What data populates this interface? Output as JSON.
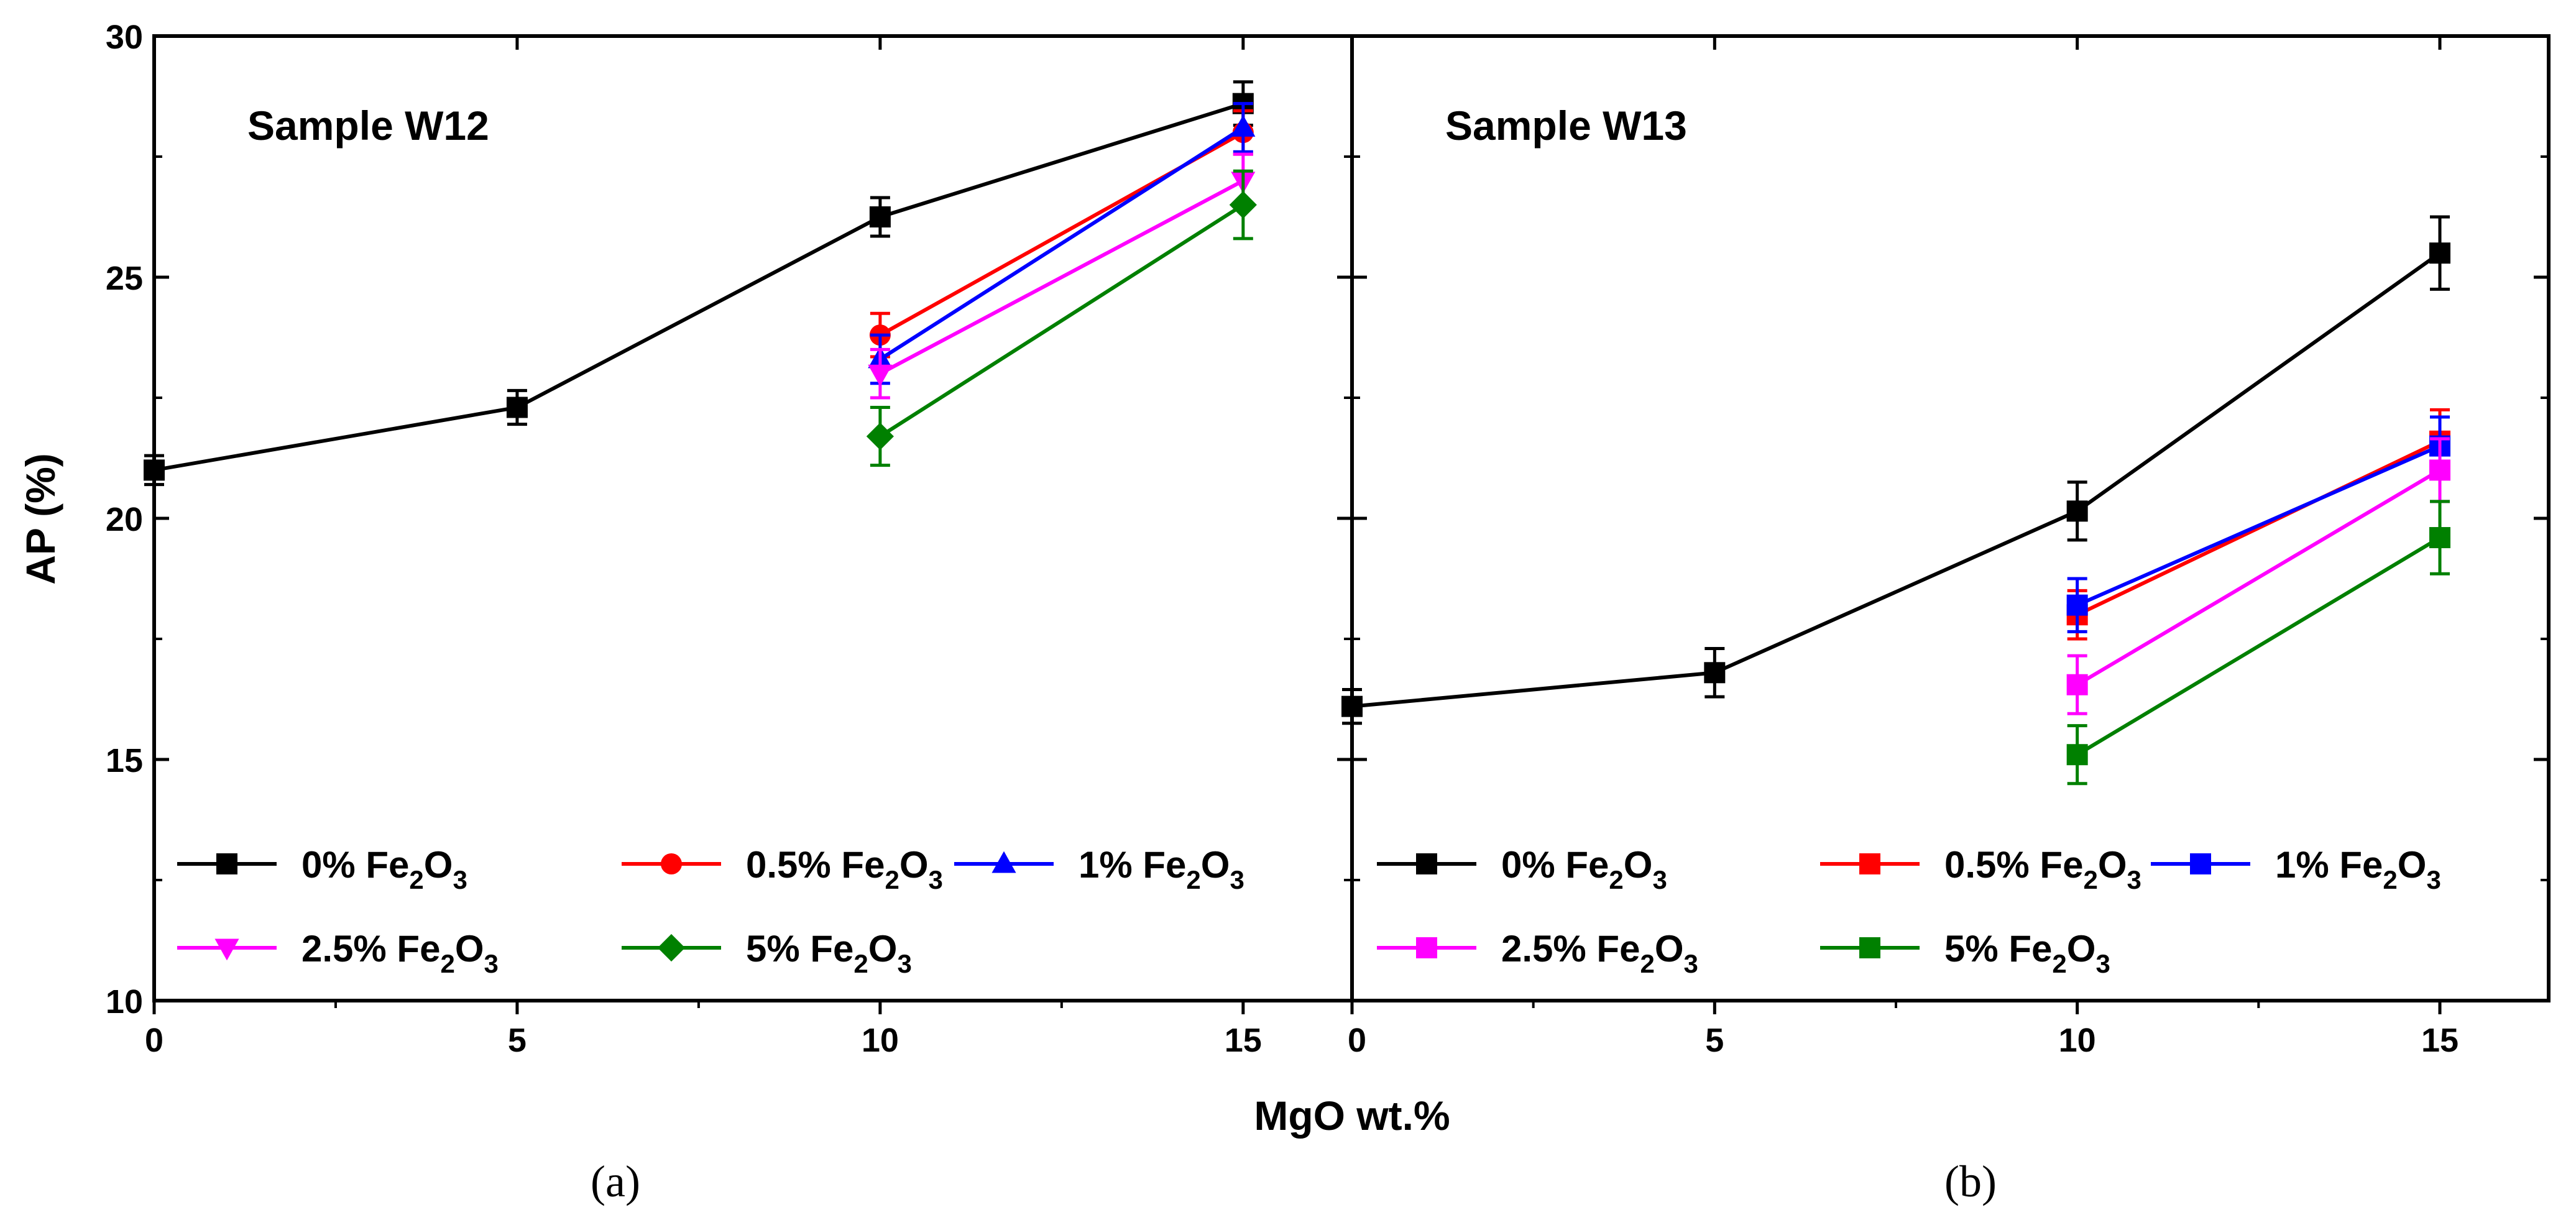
{
  "chart_data": [
    {
      "type": "line",
      "panel_label": "(a)",
      "title": "Sample W12",
      "xlabel": "MgO wt.%",
      "ylabel": "AP (%)",
      "xlim": [
        0,
        16.5
      ],
      "ylim": [
        10,
        30
      ],
      "xticks": [
        0,
        5,
        10,
        15
      ],
      "yticks": [
        10,
        15,
        20,
        25,
        30
      ],
      "legend_position": "bottom-left",
      "legend_columns": 3,
      "series": [
        {
          "name": "0% Fe2O3",
          "name_base": "0% Fe",
          "name_sub1": "2",
          "name_mid": "O",
          "name_sub2": "3",
          "color": "#000000",
          "marker": "square",
          "x": [
            0,
            5,
            10,
            15
          ],
          "y": [
            21.0,
            22.3,
            26.25,
            28.6
          ],
          "err": [
            0.3,
            0.35,
            0.4,
            0.45
          ]
        },
        {
          "name": "0.5% Fe2O3",
          "name_base": "0.5% Fe",
          "name_sub1": "2",
          "name_mid": "O",
          "name_sub2": "3",
          "color": "#ff0000",
          "marker": "circle",
          "x": [
            10,
            15
          ],
          "y": [
            23.8,
            28.0
          ],
          "err": [
            0.45,
            0.45
          ]
        },
        {
          "name": "1% Fe2O3",
          "name_base": "1% Fe",
          "name_sub1": "2",
          "name_mid": "O",
          "name_sub2": "3",
          "color": "#0000ff",
          "marker": "triangle-up",
          "x": [
            10,
            15
          ],
          "y": [
            23.3,
            28.1
          ],
          "err": [
            0.5,
            0.5
          ]
        },
        {
          "name": "2.5% Fe2O3",
          "name_base": "2.5% Fe",
          "name_sub1": "2",
          "name_mid": "O",
          "name_sub2": "3",
          "color": "#ff00ff",
          "marker": "triangle-down",
          "x": [
            10,
            15
          ],
          "y": [
            23.0,
            27.0
          ],
          "err": [
            0.5,
            0.55
          ]
        },
        {
          "name": "5% Fe2O3",
          "name_base": "5% Fe",
          "name_sub1": "2",
          "name_mid": "O",
          "name_sub2": "3",
          "color": "#008000",
          "marker": "diamond",
          "x": [
            10,
            15
          ],
          "y": [
            21.7,
            26.5
          ],
          "err": [
            0.6,
            0.7
          ]
        }
      ]
    },
    {
      "type": "line",
      "panel_label": "(b)",
      "title": "Sample W13",
      "xlabel": "MgO wt.%",
      "ylabel": "AP (%)",
      "xlim": [
        0,
        16.5
      ],
      "ylim": [
        10,
        30
      ],
      "xticks": [
        0,
        5,
        10,
        15
      ],
      "yticks": [
        10,
        15,
        20,
        25,
        30
      ],
      "legend_position": "bottom-left",
      "legend_columns": 3,
      "series": [
        {
          "name": "0% Fe2O3",
          "name_base": "0% Fe",
          "name_sub1": "2",
          "name_mid": "O",
          "name_sub2": "3",
          "color": "#000000",
          "marker": "square",
          "x": [
            0,
            5,
            10,
            15
          ],
          "y": [
            16.1,
            16.8,
            20.15,
            25.5
          ],
          "err": [
            0.35,
            0.5,
            0.6,
            0.75
          ]
        },
        {
          "name": "0.5% Fe2O3",
          "name_base": "0.5% Fe",
          "name_sub1": "2",
          "name_mid": "O",
          "name_sub2": "3",
          "color": "#ff0000",
          "marker": "square",
          "x": [
            10,
            15
          ],
          "y": [
            18.0,
            21.6
          ],
          "err": [
            0.5,
            0.65
          ]
        },
        {
          "name": "1% Fe2O3",
          "name_base": "1% Fe",
          "name_sub1": "2",
          "name_mid": "O",
          "name_sub2": "3",
          "color": "#0000ff",
          "marker": "square",
          "x": [
            10,
            15
          ],
          "y": [
            18.2,
            21.5
          ],
          "err": [
            0.55,
            0.6
          ]
        },
        {
          "name": "2.5% Fe2O3",
          "name_base": "2.5% Fe",
          "name_sub1": "2",
          "name_mid": "O",
          "name_sub2": "3",
          "color": "#ff00ff",
          "marker": "square",
          "x": [
            10,
            15
          ],
          "y": [
            16.55,
            21.0
          ],
          "err": [
            0.6,
            0.65
          ]
        },
        {
          "name": "5% Fe2O3",
          "name_base": "5% Fe",
          "name_sub1": "2",
          "name_mid": "O",
          "name_sub2": "3",
          "color": "#008000",
          "marker": "square",
          "x": [
            10,
            15
          ],
          "y": [
            15.1,
            19.6
          ],
          "err": [
            0.6,
            0.75
          ]
        }
      ]
    }
  ]
}
